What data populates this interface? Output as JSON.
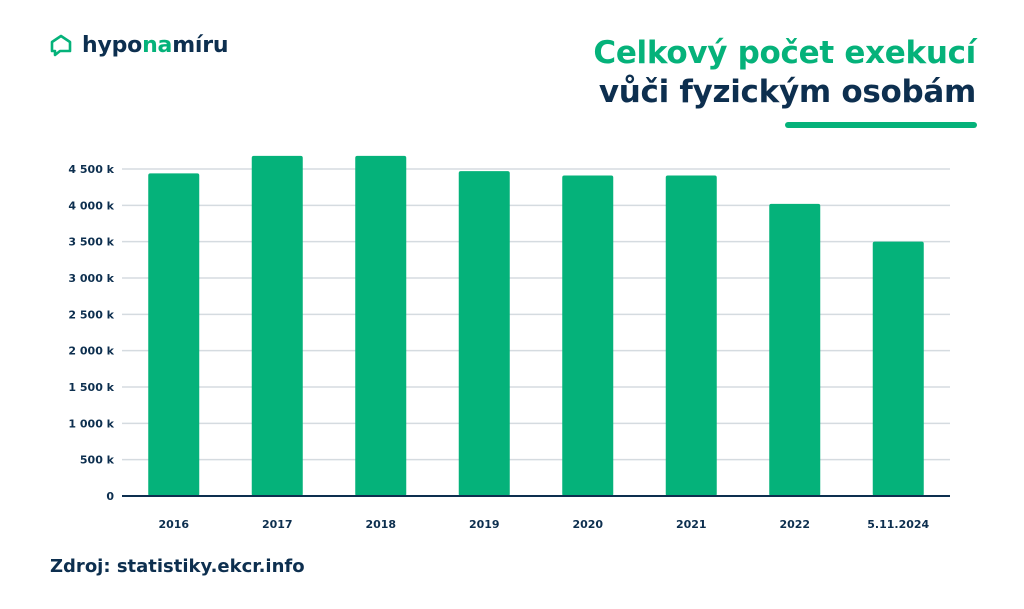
{
  "brand": {
    "logo_icon": "house-chat-icon",
    "name_part1": "hypo",
    "name_part2": "na",
    "name_part3": "míru"
  },
  "header": {
    "title_line1": "Celkový počet exekucí",
    "title_line2": "vůči fyzickým osobám"
  },
  "footer": {
    "source": "Zdroj: statistiky.ekcr.info"
  },
  "colors": {
    "accent": "#05b27a",
    "navy": "#0d2f4f",
    "grid": "#d5dbe0",
    "axis": "#0d2f4f"
  },
  "chart_data": {
    "type": "bar",
    "title": "Celkový počet exekucí vůči fyzickým osobám",
    "xlabel": "",
    "ylabel": "",
    "categories": [
      "2016",
      "2017",
      "2018",
      "2019",
      "2020",
      "2021",
      "2022",
      "5.11.2024"
    ],
    "values": [
      4440,
      4680,
      4680,
      4470,
      4410,
      4410,
      4020,
      3500
    ],
    "ylim": [
      0,
      4500
    ],
    "yticks": [
      0,
      500,
      1000,
      1500,
      2000,
      2500,
      3000,
      3500,
      4000,
      4500
    ],
    "ytick_labels": [
      "0",
      "500 k",
      "1 000 k",
      "1 500 k",
      "2 000 k",
      "2 500 k",
      "3 000 k",
      "3 500 k",
      "4 000 k",
      "4 500 k"
    ],
    "unit": "k",
    "grid": true,
    "legend": "none",
    "bar_color": "#05b27a"
  }
}
